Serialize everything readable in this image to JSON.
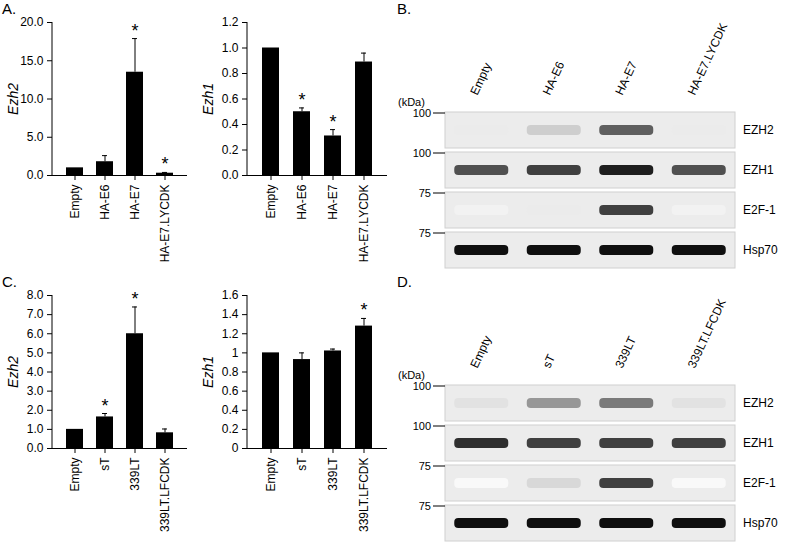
{
  "chart_data": [
    {
      "type": "bar",
      "panel": "A.",
      "y_label": "Ezh2",
      "categories": [
        "Empty",
        "HA-E6",
        "HA-E7",
        "HA-E7.LYCDK"
      ],
      "values": [
        1.0,
        1.8,
        13.5,
        0.3
      ],
      "errors": [
        0,
        0.8,
        4.4,
        0.1
      ],
      "color": "#000000",
      "ylim": [
        0,
        20
      ],
      "yticks": [
        {
          "value": 0,
          "label": "0.0"
        },
        {
          "value": 5,
          "label": "5.0"
        },
        {
          "value": 10,
          "label": "10.0"
        },
        {
          "value": 15,
          "label": "15.0"
        },
        {
          "value": 20,
          "label": "20.0"
        }
      ],
      "annotations": [
        {
          "category": "HA-E7",
          "text": "*"
        },
        {
          "category": "HA-E7.LYCDK",
          "text": "*"
        }
      ]
    },
    {
      "type": "bar",
      "y_label": "Ezh1",
      "categories": [
        "Empty",
        "HA-E6",
        "HA-E7",
        "HA-E7.LYCDK"
      ],
      "values": [
        1.0,
        0.5,
        0.31,
        0.89
      ],
      "errors": [
        0,
        0.03,
        0.05,
        0.07
      ],
      "color": "#000000",
      "ylim": [
        0,
        1.2
      ],
      "yticks": [
        {
          "value": 0,
          "label": "0.0"
        },
        0.2,
        0.4,
        0.6,
        0.8,
        {
          "value": 1,
          "label": "1.0"
        },
        1.2
      ],
      "annotations": [
        {
          "category": "HA-E6",
          "text": "*"
        },
        {
          "category": "HA-E7",
          "text": "*"
        }
      ]
    },
    {
      "type": "bar",
      "panel": "C.",
      "y_label": "Ezh2",
      "categories": [
        "Empty",
        "sT",
        "339LT",
        "339LT.LFCDK"
      ],
      "values": [
        1.0,
        1.65,
        6.0,
        0.82
      ],
      "errors": [
        0,
        0.18,
        1.4,
        0.2
      ],
      "color": "#000000",
      "ylim": [
        0,
        8
      ],
      "yticks": [
        {
          "value": 0,
          "label": "0.0"
        },
        {
          "value": 1,
          "label": "1.0"
        },
        {
          "value": 2,
          "label": "2.0"
        },
        {
          "value": 3,
          "label": "3.0"
        },
        {
          "value": 4,
          "label": "4.0"
        },
        {
          "value": 5,
          "label": "5.0"
        },
        {
          "value": 6,
          "label": "6.0"
        },
        {
          "value": 7,
          "label": "7.0"
        },
        {
          "value": 8,
          "label": "8.0"
        }
      ],
      "annotations": [
        {
          "category": "sT",
          "text": "*"
        },
        {
          "category": "339LT",
          "text": "*"
        }
      ]
    },
    {
      "type": "bar",
      "y_label": "Ezh1",
      "categories": [
        "Empty",
        "sT",
        "339LT",
        "339LT.LFCDK"
      ],
      "values": [
        1.0,
        0.93,
        1.02,
        1.28
      ],
      "errors": [
        0,
        0.07,
        0.02,
        0.08
      ],
      "color": "#000000",
      "ylim": [
        0,
        1.6
      ],
      "yticks": [
        0,
        0.2,
        0.4,
        0.6,
        0.8,
        1,
        1.2,
        1.4,
        1.6
      ],
      "annotations": [
        {
          "category": "339LT.LFCDK",
          "text": "*"
        }
      ]
    }
  ],
  "blots": [
    {
      "panel": "B.",
      "unit_label": "(kDa)",
      "lanes": [
        "Empty",
        "HA-E6",
        "HA-E7",
        "HA-E7.LYCDK"
      ],
      "rows": [
        {
          "name": "EZH2",
          "marker": 100,
          "bands": [
            0.15,
            0.3,
            0.7,
            0.15
          ]
        },
        {
          "name": "EZH1",
          "marker": 100,
          "bands": [
            0.75,
            0.8,
            0.9,
            0.75
          ]
        },
        {
          "name": "E2F-1",
          "marker": 75,
          "bands": [
            0.1,
            0.15,
            0.8,
            0.1
          ]
        },
        {
          "name": "Hsp70",
          "marker": 75,
          "bands": [
            0.95,
            0.95,
            0.95,
            0.95
          ]
        }
      ]
    },
    {
      "panel": "D.",
      "unit_label": "(kDa)",
      "lanes": [
        "Empty",
        "sT",
        "339LT",
        "339LT.LFCDK"
      ],
      "rows": [
        {
          "name": "EZH2",
          "marker": 100,
          "bands": [
            0.2,
            0.5,
            0.6,
            0.2
          ]
        },
        {
          "name": "EZH1",
          "marker": 100,
          "bands": [
            0.85,
            0.8,
            0.8,
            0.8
          ]
        },
        {
          "name": "E2F-1",
          "marker": 75,
          "bands": [
            0.05,
            0.25,
            0.8,
            0.05
          ]
        },
        {
          "name": "Hsp70",
          "marker": 75,
          "bands": [
            0.95,
            0.95,
            0.95,
            0.95
          ]
        }
      ]
    }
  ]
}
